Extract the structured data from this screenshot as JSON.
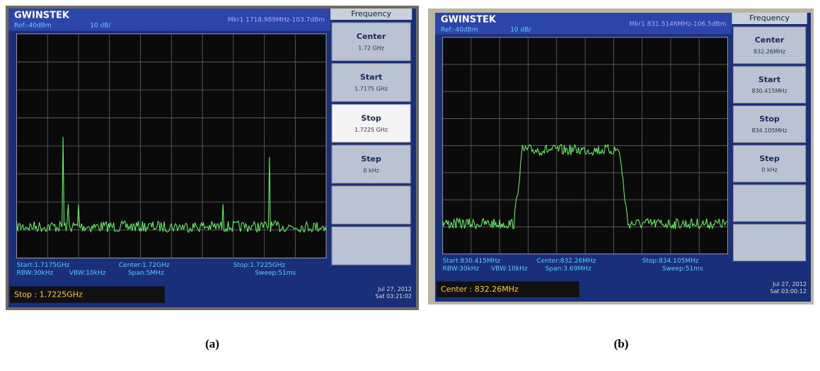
{
  "panels": [
    {
      "brand": "GWINSTEK",
      "ref": "Ref:-40dBm",
      "scale": "10 dB/",
      "marker": "Mkr1 1718.989MHz-103.7dBm",
      "menu_title": "Frequency",
      "buttons": [
        {
          "label": "Center",
          "value": "1.72 GHz"
        },
        {
          "label": "Start",
          "value": "1.7175 GHz"
        },
        {
          "label": "Stop",
          "value": "1.7225 GHz"
        },
        {
          "label": "Step",
          "value": "0 kHz"
        }
      ],
      "footer": {
        "start": "Start:1.7175GHz",
        "center": "Center:1.72GHz",
        "stop": "Stop:1.7225GHz",
        "rbw": "RBW:30kHz",
        "vbw": "VBW:10kHz",
        "span": "Span:5MHz",
        "sweep": "Sweep:51ms"
      },
      "input": "Stop : 1.7225GHz",
      "date": "Jul 27, 2012",
      "time": "Sat 03:21:02",
      "caption": "(a)"
    },
    {
      "brand": "GWINSTEK",
      "ref": "Ref:-40dBm",
      "scale": "10 dB/",
      "marker": "Mkr1 831.5146MHz-106.5dBm",
      "menu_title": "Frequency",
      "buttons": [
        {
          "label": "Center",
          "value": "832.26MHz"
        },
        {
          "label": "Start",
          "value": "830.415MHz"
        },
        {
          "label": "Stop",
          "value": "834.105MHz"
        },
        {
          "label": "Step",
          "value": "0 kHz"
        }
      ],
      "footer": {
        "start": "Start:830.415MHz",
        "center": "Center:832.26MHz",
        "stop": "Stop:834.105MHz",
        "rbw": "RBW:30kHz",
        "vbw": "VBW:10kHz",
        "span": "Span:3.69MHz",
        "sweep": "Sweep:51ms"
      },
      "input": "Center : 832.26MHz",
      "date": "Jul 27, 2012",
      "time": "Sat 03:00:12",
      "caption": "(b)"
    }
  ]
}
